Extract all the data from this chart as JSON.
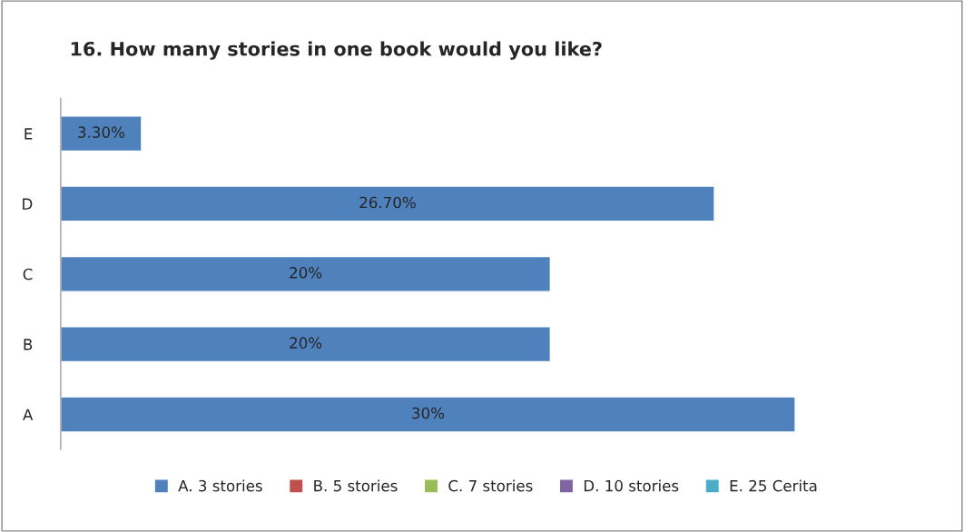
{
  "chart_data": {
    "type": "bar",
    "orientation": "horizontal",
    "title": "16. How many stories in one book would you like?",
    "categories": [
      "E",
      "D",
      "C",
      "B",
      "A"
    ],
    "series": [
      {
        "name": "A. 3 stories",
        "color": "#4f81bd",
        "values": [
          3.3,
          26.7,
          20,
          20,
          30
        ],
        "value_labels": [
          "3.30%",
          "26.70%",
          "20%",
          "20%",
          "30%"
        ]
      },
      {
        "name": "B. 5 stories",
        "color": "#c0504d",
        "values": [
          null,
          null,
          null,
          null,
          null
        ]
      },
      {
        "name": "C. 7 stories",
        "color": "#9bbb59",
        "values": [
          null,
          null,
          null,
          null,
          null
        ]
      },
      {
        "name": "D. 10 stories",
        "color": "#8064a2",
        "values": [
          null,
          null,
          null,
          null,
          null
        ]
      },
      {
        "name": "E. 25 Cerita",
        "color": "#4bacc6",
        "values": [
          null,
          null,
          null,
          null,
          null
        ]
      }
    ],
    "legend": "bottom",
    "grid": false,
    "tick_labels": "y"
  }
}
